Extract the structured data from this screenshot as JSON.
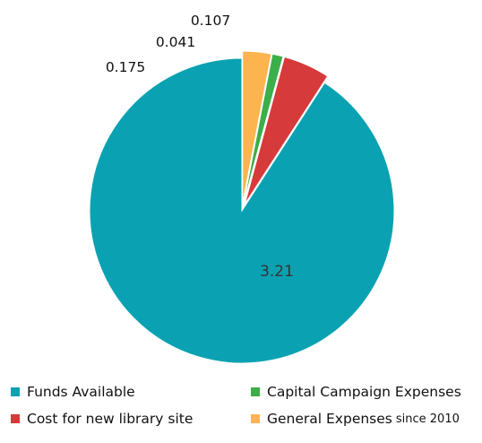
{
  "chart_data": {
    "type": "pie",
    "slices": [
      {
        "name": "Funds Available",
        "value": 3.21,
        "label": "3.21",
        "color": "#0aa2b2",
        "exploded": false
      },
      {
        "name": "Cost for new library site",
        "value": 0.175,
        "label": "0.175",
        "color": "#d63a3a",
        "exploded": true
      },
      {
        "name": "Capital Campaign Expenses",
        "value": 0.041,
        "label": "0.041",
        "color": "#3cae4a",
        "exploded": true
      },
      {
        "name": "General Expenses",
        "value": 0.107,
        "label": "0.107",
        "color": "#fbb44e",
        "exploded": true
      }
    ],
    "legend_placement": "bottom"
  },
  "legend": {
    "items": [
      {
        "label": "Funds Available",
        "suffix": "",
        "color": "#0aa2b2"
      },
      {
        "label": "Capital Campaign Expenses",
        "suffix": "",
        "color": "#3cae4a"
      },
      {
        "label": "Cost for new library site",
        "suffix": "",
        "color": "#d63a3a"
      },
      {
        "label": "General Expenses",
        "suffix": "since 2010",
        "color": "#fbb44e"
      }
    ]
  }
}
